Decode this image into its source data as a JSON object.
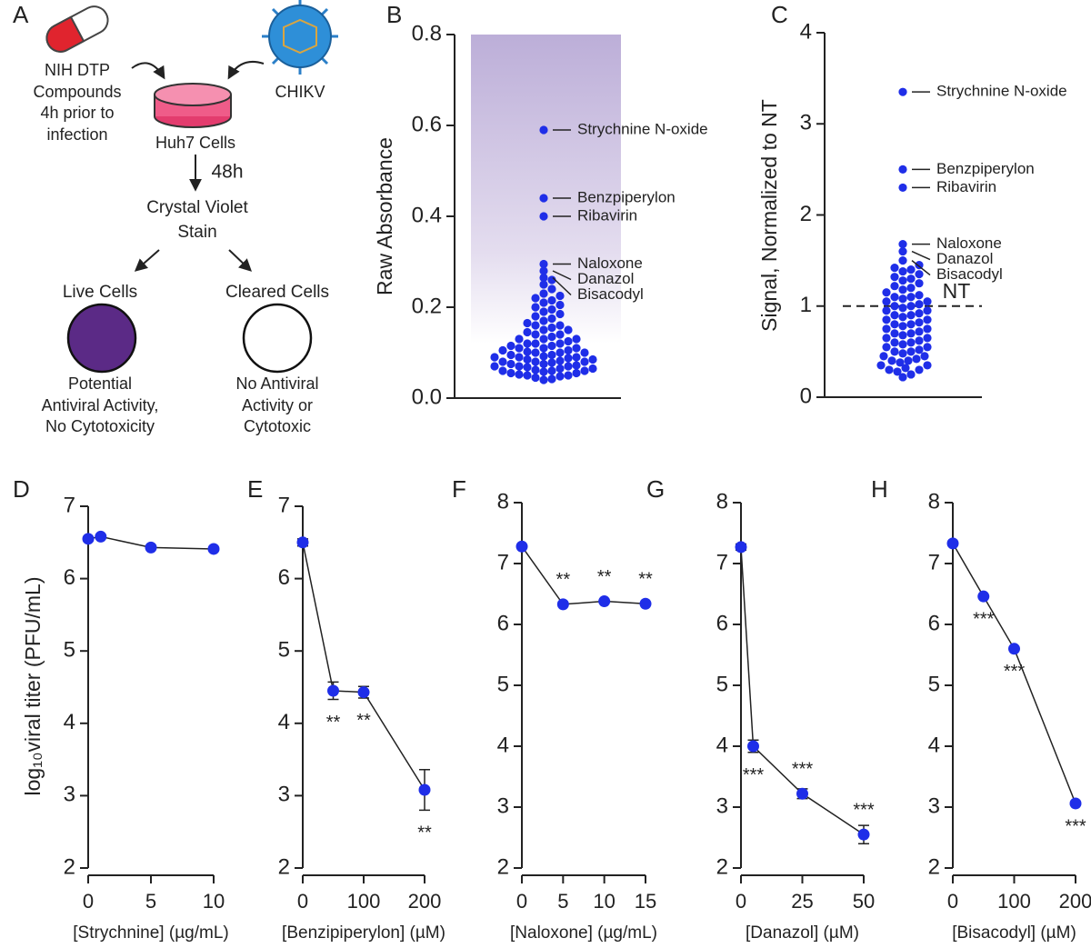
{
  "diagram": {
    "panel": "A",
    "compounds": [
      "NIH DTP",
      "Compounds",
      "4h prior to",
      "infection"
    ],
    "virus": "CHIKV",
    "cells": "Huh7 Cells",
    "time": "48h",
    "stain": [
      "Crystal Violet",
      "Stain"
    ],
    "live": "Live Cells",
    "cleared": "Cleared Cells",
    "live_note": [
      "Potential",
      "Antiviral Activity,",
      "No Cytotoxicity"
    ],
    "cleared_note": [
      "No Antiviral",
      "Activity or",
      "Cytotoxic"
    ]
  },
  "chart_data": [
    {
      "type": "swarm",
      "panel": "B",
      "ylabel": "Raw Absorbance",
      "color": "#1f2ee8",
      "ylim": [
        0,
        0.8
      ],
      "yticks": [
        {
          "value": 0,
          "label": "0.0"
        },
        0.2,
        0.4,
        0.6,
        {
          "value": 0.8,
          "label": "0.8"
        }
      ],
      "labeled": [
        {
          "name": "Strychnine N-oxide",
          "value": 0.59
        },
        {
          "name": "Benzpiperylon",
          "value": 0.44
        },
        {
          "name": "Ribavirin",
          "value": 0.4
        },
        {
          "name": "Naloxone",
          "value": 0.295
        },
        {
          "name": "Danazol",
          "value": 0.28
        },
        {
          "name": "Bisacodyl",
          "value": 0.265
        }
      ],
      "values": [
        0.04,
        0.042,
        0.045,
        0.048,
        0.05,
        0.05,
        0.052,
        0.055,
        0.055,
        0.058,
        0.06,
        0.06,
        0.06,
        0.062,
        0.065,
        0.065,
        0.068,
        0.07,
        0.07,
        0.07,
        0.072,
        0.075,
        0.075,
        0.078,
        0.08,
        0.08,
        0.08,
        0.082,
        0.085,
        0.085,
        0.088,
        0.09,
        0.09,
        0.09,
        0.092,
        0.095,
        0.095,
        0.1,
        0.1,
        0.1,
        0.102,
        0.105,
        0.105,
        0.11,
        0.11,
        0.11,
        0.115,
        0.115,
        0.12,
        0.12,
        0.12,
        0.125,
        0.13,
        0.13,
        0.13,
        0.135,
        0.14,
        0.14,
        0.145,
        0.15,
        0.15,
        0.155,
        0.16,
        0.16,
        0.165,
        0.17,
        0.175,
        0.18,
        0.185,
        0.19,
        0.195,
        0.2,
        0.205,
        0.21,
        0.215,
        0.22,
        0.225,
        0.23,
        0.24,
        0.25,
        0.26
      ]
    },
    {
      "type": "swarm",
      "panel": "C",
      "ylabel": "Signal, Normalized to NT",
      "color": "#1f2ee8",
      "ylim": [
        0,
        4
      ],
      "yticks": [
        0,
        1,
        2,
        3,
        4
      ],
      "reference": {
        "value": 1,
        "label": "NT"
      },
      "labeled": [
        {
          "name": "Strychnine N-oxide",
          "value": 3.35
        },
        {
          "name": "Benzpiperylon",
          "value": 2.5
        },
        {
          "name": "Ribavirin",
          "value": 2.3
        },
        {
          "name": "Naloxone",
          "value": 1.68
        },
        {
          "name": "Danazol",
          "value": 1.6
        },
        {
          "name": "Bisacodyl",
          "value": 1.5
        }
      ],
      "values": [
        0.22,
        0.25,
        0.28,
        0.3,
        0.3,
        0.32,
        0.35,
        0.35,
        0.38,
        0.4,
        0.4,
        0.42,
        0.45,
        0.45,
        0.48,
        0.5,
        0.5,
        0.52,
        0.55,
        0.55,
        0.58,
        0.6,
        0.6,
        0.62,
        0.65,
        0.65,
        0.68,
        0.7,
        0.7,
        0.72,
        0.75,
        0.75,
        0.78,
        0.8,
        0.8,
        0.82,
        0.85,
        0.85,
        0.88,
        0.9,
        0.9,
        0.92,
        0.95,
        0.95,
        0.98,
        1.0,
        1.0,
        1.02,
        1.05,
        1.05,
        1.08,
        1.1,
        1.1,
        1.12,
        1.15,
        1.18,
        1.2,
        1.22,
        1.25,
        1.28,
        1.3,
        1.32,
        1.35,
        1.38,
        1.4,
        1.42,
        1.45
      ]
    },
    {
      "type": "line",
      "panel": "D",
      "ylabel": "log₁₀viral titer (PFU/mL)",
      "xlabel": "[Strychnine] (µg/mL)",
      "color": "#1f2ee8",
      "x": [
        0,
        1,
        5,
        10
      ],
      "values": [
        6.55,
        6.58,
        6.43,
        6.41
      ],
      "xlim": [
        0,
        10
      ],
      "xticks": [
        0,
        5,
        10
      ],
      "ylim": [
        2,
        7
      ],
      "yticks": [
        2,
        3,
        4,
        5,
        6,
        7
      ]
    },
    {
      "type": "line",
      "panel": "E",
      "xlabel": "[Benzipiperylon] (µM)",
      "color": "#1f2ee8",
      "x": [
        0,
        50,
        100,
        200
      ],
      "values": [
        6.5,
        4.45,
        4.43,
        3.08
      ],
      "errors": [
        0.05,
        0.12,
        0.08,
        0.28
      ],
      "significance": [
        null,
        "**",
        "**",
        "**"
      ],
      "significance_side": [
        null,
        "below",
        "below",
        "below"
      ],
      "xlim": [
        0,
        200
      ],
      "xticks": [
        0,
        100,
        200
      ],
      "ylim": [
        2,
        7
      ],
      "yticks": [
        2,
        3,
        4,
        5,
        6,
        7
      ]
    },
    {
      "type": "line",
      "panel": "F",
      "xlabel": "[Naloxone] (µg/mL)",
      "color": "#1f2ee8",
      "x": [
        0,
        5,
        10,
        15
      ],
      "values": [
        7.28,
        6.33,
        6.38,
        6.34
      ],
      "significance": [
        null,
        "**",
        "**",
        "**"
      ],
      "significance_side": [
        null,
        "above",
        "above",
        "above"
      ],
      "xlim": [
        0,
        15
      ],
      "xticks": [
        0,
        5,
        10,
        15
      ],
      "ylim": [
        2,
        8
      ],
      "yticks": [
        2,
        3,
        4,
        5,
        6,
        7,
        8
      ]
    },
    {
      "type": "line",
      "panel": "G",
      "xlabel": "[Danazol] (µM)",
      "color": "#1f2ee8",
      "x": [
        0,
        5,
        25,
        50
      ],
      "values": [
        7.27,
        4.0,
        3.22,
        2.55
      ],
      "errors": [
        0.05,
        0.1,
        0.08,
        0.15
      ],
      "significance": [
        null,
        "***",
        "***",
        "***"
      ],
      "significance_side": [
        null,
        "below",
        "above",
        "above"
      ],
      "xlim": [
        0,
        50
      ],
      "xticks": [
        0,
        25,
        50
      ],
      "ylim": [
        2,
        8
      ],
      "yticks": [
        2,
        3,
        4,
        5,
        6,
        7,
        8
      ]
    },
    {
      "type": "line",
      "panel": "H",
      "xlabel": "[Bisacodyl] (µM)",
      "color": "#1f2ee8",
      "x": [
        0,
        50,
        100,
        200
      ],
      "values": [
        7.33,
        6.46,
        5.6,
        3.06
      ],
      "significance": [
        null,
        "***",
        "***",
        "***"
      ],
      "significance_side": [
        null,
        "below",
        "below",
        "below"
      ],
      "xlim": [
        0,
        200
      ],
      "xticks": [
        0,
        100,
        200
      ],
      "ylim": [
        2,
        8
      ],
      "yticks": [
        2,
        3,
        4,
        5,
        6,
        7,
        8
      ]
    }
  ]
}
